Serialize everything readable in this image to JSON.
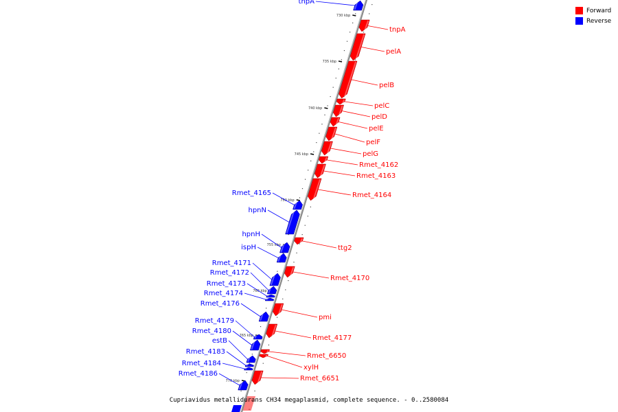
{
  "legend": {
    "forward": {
      "label": "Forward",
      "color": "#ff0000"
    },
    "reverse": {
      "label": "Reverse",
      "color": "#0000ff"
    }
  },
  "caption": "Cupriavidus metallidurans CH34 megaplasmid, complete sequence. - 0..2580084",
  "ticks": [
    "730 kbp",
    "735 kbp",
    "740 kbp",
    "745 kbp",
    "750 kbp",
    "755 kbp",
    "760 kbp",
    "765 kbp",
    "770 kbp"
  ],
  "genes": [
    {
      "name": "tnpA",
      "strand": "reverse"
    },
    {
      "name": "tnpA",
      "strand": "forward"
    },
    {
      "name": "pelA",
      "strand": "forward"
    },
    {
      "name": "pelB",
      "strand": "forward"
    },
    {
      "name": "pelC",
      "strand": "forward"
    },
    {
      "name": "pelD",
      "strand": "forward"
    },
    {
      "name": "pelE",
      "strand": "forward"
    },
    {
      "name": "pelF",
      "strand": "forward"
    },
    {
      "name": "pelG",
      "strand": "forward"
    },
    {
      "name": "Rmet_4162",
      "strand": "forward"
    },
    {
      "name": "Rmet_4163",
      "strand": "forward"
    },
    {
      "name": "Rmet_4164",
      "strand": "forward"
    },
    {
      "name": "Rmet_4165",
      "strand": "reverse"
    },
    {
      "name": "hpnN",
      "strand": "reverse"
    },
    {
      "name": "hpnH",
      "strand": "reverse"
    },
    {
      "name": "ispH",
      "strand": "reverse"
    },
    {
      "name": "ttg2",
      "strand": "forward"
    },
    {
      "name": "Rmet_4170",
      "strand": "forward"
    },
    {
      "name": "Rmet_4171",
      "strand": "reverse"
    },
    {
      "name": "Rmet_4172",
      "strand": "reverse"
    },
    {
      "name": "Rmet_4173",
      "strand": "reverse"
    },
    {
      "name": "Rmet_4174",
      "strand": "reverse"
    },
    {
      "name": "Rmet_4176",
      "strand": "reverse"
    },
    {
      "name": "pmi",
      "strand": "forward"
    },
    {
      "name": "Rmet_4177",
      "strand": "forward"
    },
    {
      "name": "Rmet_4179",
      "strand": "reverse"
    },
    {
      "name": "Rmet_4180",
      "strand": "reverse"
    },
    {
      "name": "estB",
      "strand": "reverse"
    },
    {
      "name": "Rmet_6650",
      "strand": "forward"
    },
    {
      "name": "xylH",
      "strand": "forward"
    },
    {
      "name": "Rmet_4183",
      "strand": "reverse"
    },
    {
      "name": "Rmet_4184",
      "strand": "reverse"
    },
    {
      "name": "Rmet_6651",
      "strand": "forward"
    },
    {
      "name": "Rmet_4186",
      "strand": "reverse"
    }
  ]
}
